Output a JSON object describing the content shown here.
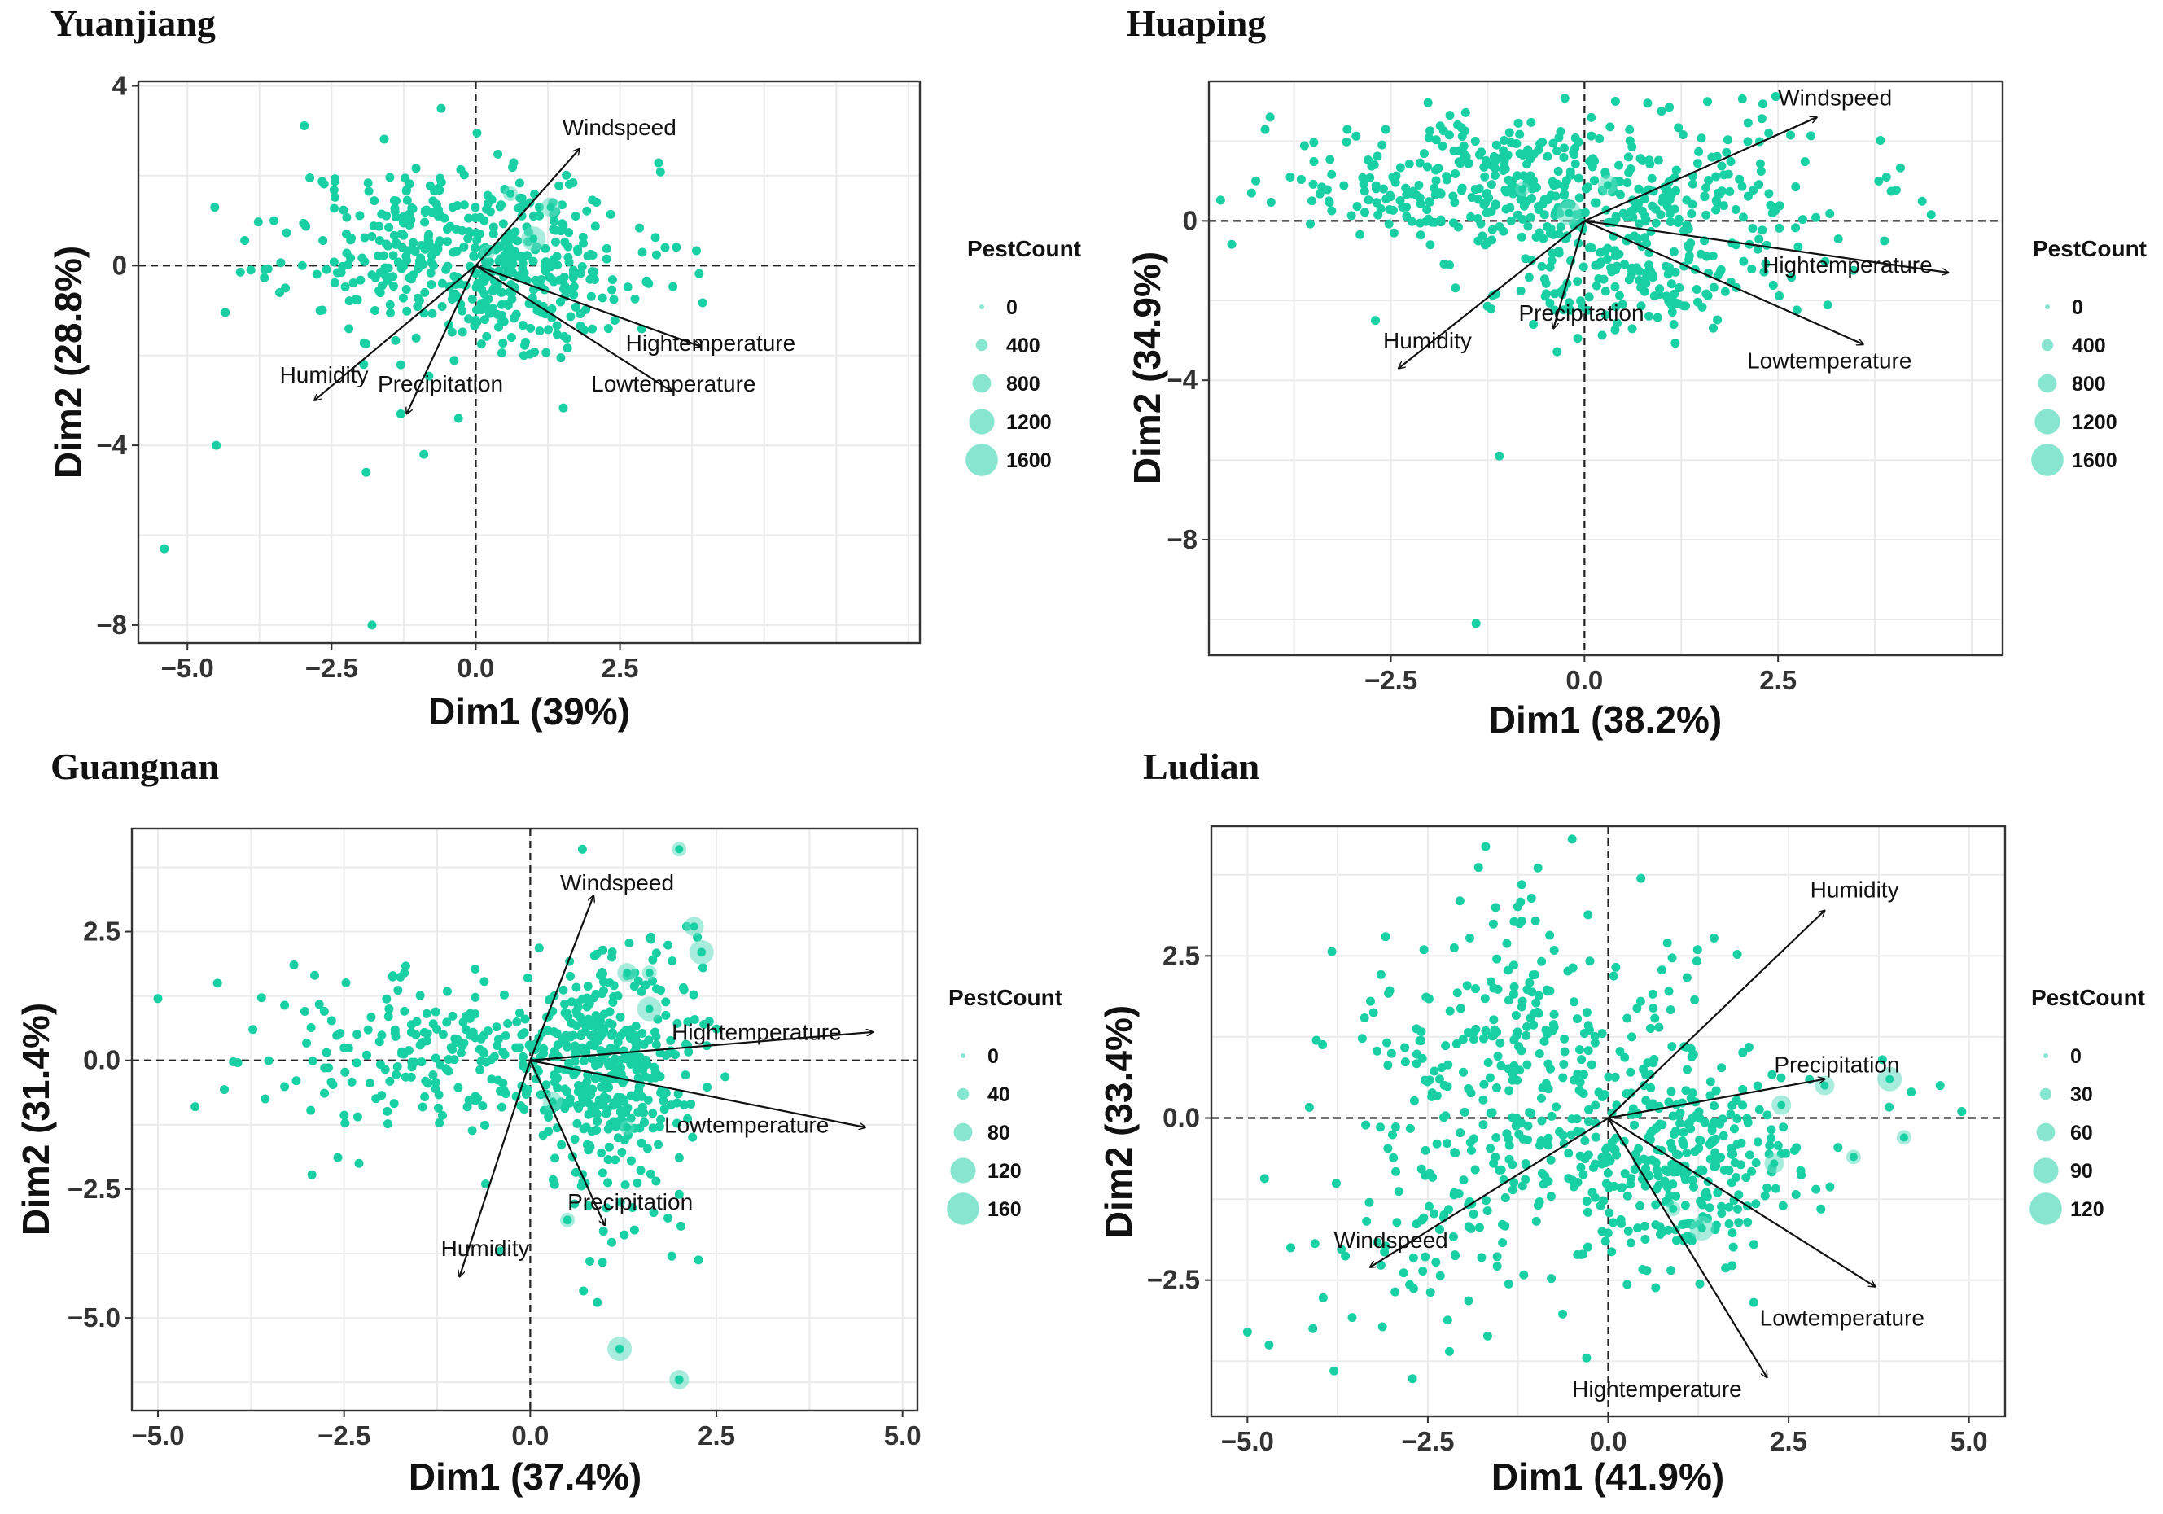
{
  "colors": {
    "point": "#19cfa4",
    "point_large": "#5fdcc0",
    "grid": "#ebebeb",
    "axis": "#333333"
  },
  "chart_data": [
    {
      "type": "scatter",
      "title": "Yuanjiang",
      "xlabel": "Dim1 (39%)",
      "ylabel": "Dim2 (28.8%)",
      "xlim": [
        -5.85,
        7.7
      ],
      "ylim": [
        -8.4,
        4.1
      ],
      "xticks": [
        -5.0,
        -2.5,
        0.0,
        2.5
      ],
      "xtick_labels": [
        "−5.0",
        "−2.5",
        "0.0",
        "2.5"
      ],
      "yticks": [
        -8,
        -4,
        0,
        4
      ],
      "ytick_labels": [
        "−8",
        "−4",
        "0",
        "4"
      ],
      "vectors": [
        {
          "name": "Windspeed",
          "x": 1.8,
          "y": 2.6,
          "label_x": 1.5,
          "label_y": 2.9
        },
        {
          "name": "Hightemperature",
          "x": 3.9,
          "y": -1.8,
          "label_x": 2.6,
          "label_y": -1.9
        },
        {
          "name": "Lowtemperature",
          "x": 3.4,
          "y": -2.8,
          "label_x": 2.0,
          "label_y": -2.8
        },
        {
          "name": "Humidity",
          "x": -2.8,
          "y": -3.0,
          "label_x": -3.4,
          "label_y": -2.6
        },
        {
          "name": "Precipitation",
          "x": -1.2,
          "y": -3.3,
          "label_x": -1.7,
          "label_y": -2.8
        }
      ],
      "points": [
        [
          -5.4,
          -6.3
        ],
        [
          -4.5,
          -4.0
        ],
        [
          -1.8,
          -8.0
        ],
        [
          -1.9,
          -4.6
        ],
        [
          -1.3,
          -3.3
        ],
        [
          -0.9,
          -4.2
        ],
        [
          -0.3,
          -3.4
        ],
        [
          -2.7,
          -1.0
        ],
        [
          -3.4,
          -0.6
        ],
        [
          -3.9,
          -0.1
        ],
        [
          -3.5,
          1.0
        ],
        [
          -0.6,
          3.5
        ],
        [
          0.5,
          1.7
        ],
        [
          1.0,
          1.1
        ],
        [
          1.1,
          1.3
        ],
        [
          0.8,
          1.5
        ]
      ],
      "cloud": {
        "cx": -0.3,
        "cy": 0.5,
        "sx": 1.5,
        "sy": 0.9,
        "n": 340,
        "seed": 11
      },
      "cloud2": {
        "cx": 0.8,
        "cy": -0.7,
        "sx": 1.1,
        "sy": 0.8,
        "n": 160,
        "seed": 12
      },
      "big": [
        [
          0.6,
          1.6
        ],
        [
          1.3,
          1.3
        ],
        [
          1.0,
          0.6
        ],
        [
          0.2,
          0.3
        ]
      ],
      "legend": {
        "title": "PestCount",
        "labels": [
          "0",
          "400",
          "800",
          "1200",
          "1600"
        ]
      }
    },
    {
      "type": "scatter",
      "title": "Huaping",
      "xlabel": "Dim1 (38.2%)",
      "ylabel": "Dim2 (34.9%)",
      "xlim": [
        -4.85,
        5.4
      ],
      "ylim": [
        -10.9,
        3.5
      ],
      "xticks": [
        -2.5,
        0.0,
        2.5
      ],
      "xtick_labels": [
        "−2.5",
        "0.0",
        "2.5"
      ],
      "yticks": [
        -8,
        -4,
        0
      ],
      "ytick_labels": [
        "−8",
        "−4",
        "0"
      ],
      "vectors": [
        {
          "name": "Windspeed",
          "x": 3.0,
          "y": 2.6,
          "label_x": 2.5,
          "label_y": 2.9
        },
        {
          "name": "Hightemperature",
          "x": 4.7,
          "y": -1.3,
          "label_x": 2.3,
          "label_y": -1.3
        },
        {
          "name": "Lowtemperature",
          "x": 3.6,
          "y": -3.1,
          "label_x": 2.1,
          "label_y": -3.7
        },
        {
          "name": "Humidity",
          "x": -2.4,
          "y": -3.7,
          "label_x": -2.6,
          "label_y": -3.2
        },
        {
          "name": "Precipitation",
          "x": -0.4,
          "y": -2.7,
          "label_x": -0.85,
          "label_y": -2.5
        }
      ],
      "points": [
        [
          -1.4,
          -10.1
        ],
        [
          -1.1,
          -5.9
        ],
        [
          -2.7,
          -2.5
        ],
        [
          -4.3,
          0.7
        ],
        [
          -3.8,
          1.1
        ],
        [
          -3.3,
          0.5
        ],
        [
          0.4,
          3.0
        ],
        [
          3.8,
          1.0
        ],
        [
          3.9,
          1.1
        ]
      ],
      "cloud": {
        "cx": -1.2,
        "cy": 0.9,
        "sx": 1.4,
        "sy": 0.8,
        "n": 280,
        "seed": 21
      },
      "cloud2": {
        "cx": 0.9,
        "cy": 0.6,
        "sx": 1.4,
        "sy": 1.0,
        "n": 200,
        "seed": 22
      },
      "cloud3": {
        "cx": 0.5,
        "cy": -1.5,
        "sx": 0.8,
        "sy": 0.7,
        "n": 150,
        "seed": 23
      },
      "big": [
        [
          -0.8,
          0.8
        ],
        [
          0.3,
          0.9
        ],
        [
          -0.2,
          0.2
        ]
      ],
      "legend": {
        "title": "PestCount",
        "labels": [
          "0",
          "400",
          "800",
          "1200",
          "1600"
        ]
      }
    },
    {
      "type": "scatter",
      "title": "Guangnan",
      "xlabel": "Dim1 (37.4%)",
      "ylabel": "Dim2 (31.4%)",
      "xlim": [
        -5.35,
        5.2
      ],
      "ylim": [
        -6.8,
        4.5
      ],
      "xticks": [
        -5.0,
        -2.5,
        0.0,
        2.5,
        5.0
      ],
      "xtick_labels": [
        "−5.0",
        "−2.5",
        "0.0",
        "2.5",
        "5.0"
      ],
      "yticks": [
        -5.0,
        -2.5,
        0.0,
        2.5
      ],
      "ytick_labels": [
        "−5.0",
        "−2.5",
        "0.0",
        "2.5"
      ],
      "vectors": [
        {
          "name": "Windspeed",
          "x": 0.85,
          "y": 3.2,
          "label_x": 0.4,
          "label_y": 3.3
        },
        {
          "name": "Hightemperature",
          "x": 4.6,
          "y": 0.55,
          "label_x": 1.9,
          "label_y": 0.4
        },
        {
          "name": "Lowtemperature",
          "x": 4.5,
          "y": -1.3,
          "label_x": 1.8,
          "label_y": -1.4
        },
        {
          "name": "Humidity",
          "x": -0.95,
          "y": -4.2,
          "label_x": -1.2,
          "label_y": -3.8
        },
        {
          "name": "Precipitation",
          "x": 1.0,
          "y": -3.2,
          "label_x": 0.5,
          "label_y": -2.9
        }
      ],
      "points": [
        [
          -5.0,
          1.2
        ],
        [
          -4.5,
          -0.9
        ],
        [
          -4.2,
          1.5
        ],
        [
          -2.3,
          -2.0
        ],
        [
          0.7,
          4.1
        ],
        [
          0.8,
          -3.9
        ],
        [
          0.9,
          -4.7
        ],
        [
          1.2,
          -5.6
        ],
        [
          2.0,
          -6.2
        ],
        [
          1.9,
          -3.8
        ],
        [
          2.0,
          -2.6
        ],
        [
          -0.4,
          -3.7
        ],
        [
          -0.6,
          -2.4
        ],
        [
          0.5,
          -3.1
        ],
        [
          2.3,
          2.1
        ],
        [
          2.1,
          2.6
        ]
      ],
      "cloud": {
        "cx": -1.2,
        "cy": 0.1,
        "sx": 1.3,
        "sy": 0.8,
        "n": 220,
        "seed": 31
      },
      "cloud2": {
        "cx": 1.0,
        "cy": 0.0,
        "sx": 0.6,
        "sy": 1.0,
        "n": 320,
        "seed": 32
      },
      "cloud3": {
        "cx": 1.1,
        "cy": -2.0,
        "sx": 0.5,
        "sy": 1.1,
        "n": 60,
        "seed": 33
      },
      "big": [
        [
          2.0,
          4.1
        ],
        [
          2.2,
          2.6
        ],
        [
          2.3,
          2.1
        ],
        [
          1.6,
          1.7
        ],
        [
          1.3,
          1.7
        ],
        [
          1.6,
          1.0
        ],
        [
          1.3,
          -1.3
        ],
        [
          2.0,
          -6.2
        ],
        [
          1.2,
          -5.6
        ],
        [
          0.5,
          -3.1
        ],
        [
          0.3,
          -0.8
        ]
      ],
      "legend": {
        "title": "PestCount",
        "labels": [
          "0",
          "40",
          "80",
          "120",
          "160"
        ]
      }
    },
    {
      "type": "scatter",
      "title": "Ludian",
      "xlabel": "Dim1 (41.9%)",
      "ylabel": "Dim2 (33.4%)",
      "xlim": [
        -5.5,
        5.5
      ],
      "ylim": [
        -4.6,
        4.5
      ],
      "xticks": [
        -5.0,
        -2.5,
        0.0,
        2.5,
        5.0
      ],
      "xtick_labels": [
        "−5.0",
        "−2.5",
        "0.0",
        "2.5",
        "5.0"
      ],
      "yticks": [
        -2.5,
        0.0,
        2.5
      ],
      "ytick_labels": [
        "−2.5",
        "0.0",
        "2.5"
      ],
      "vectors": [
        {
          "name": "Humidity",
          "x": 3.0,
          "y": 3.2,
          "label_x": 2.8,
          "label_y": 3.4
        },
        {
          "name": "Precipitation",
          "x": 3.0,
          "y": 0.6,
          "label_x": 2.3,
          "label_y": 0.7
        },
        {
          "name": "Lowtemperature",
          "x": 3.7,
          "y": -2.6,
          "label_x": 2.1,
          "label_y": -3.2
        },
        {
          "name": "Hightemperature",
          "x": 2.2,
          "y": -4.0,
          "label_x": -0.5,
          "label_y": -4.3
        },
        {
          "name": "Windspeed",
          "x": -3.3,
          "y": -2.3,
          "label_x": -3.8,
          "label_y": -2.0
        }
      ],
      "points": [
        [
          -5.0,
          -3.3
        ],
        [
          -4.7,
          -3.5
        ],
        [
          -4.4,
          -2.0
        ],
        [
          -3.8,
          -3.9
        ],
        [
          -0.5,
          4.3
        ],
        [
          4.9,
          0.1
        ],
        [
          4.6,
          0.5
        ],
        [
          4.2,
          0.4
        ],
        [
          3.8,
          0.9
        ],
        [
          -2.2,
          -3.6
        ],
        [
          -0.3,
          -3.7
        ]
      ],
      "cloud": {
        "cx": -1.0,
        "cy": 0.7,
        "sx": 1.3,
        "sy": 1.3,
        "n": 340,
        "seed": 41
      },
      "cloud2": {
        "cx": 1.1,
        "cy": -0.7,
        "sx": 0.8,
        "sy": 0.8,
        "n": 260,
        "seed": 42
      },
      "cloud3": {
        "cx": -2.5,
        "cy": -1.6,
        "sx": 1.0,
        "sy": 0.9,
        "n": 70,
        "seed": 43
      },
      "big": [
        [
          3.4,
          -0.6
        ],
        [
          2.4,
          0.2
        ],
        [
          3.9,
          0.6
        ],
        [
          4.1,
          -0.3
        ],
        [
          2.3,
          -0.7
        ],
        [
          1.3,
          -1.7
        ],
        [
          0.9,
          -1.4
        ],
        [
          3.0,
          0.5
        ]
      ],
      "legend": {
        "title": "PestCount",
        "labels": [
          "0",
          "30",
          "60",
          "90",
          "120"
        ]
      }
    }
  ]
}
